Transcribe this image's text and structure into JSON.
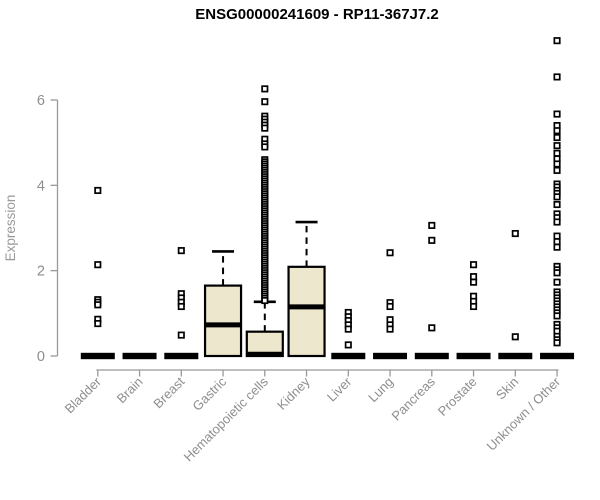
{
  "title": "ENSG00000241609 - RP11-367J7.2",
  "colors": {
    "title": "#000000",
    "axis_line": "#999999",
    "tick_label": "#8e8e8e",
    "axis_title": "#9a9a9a",
    "box_fill": "#ece7cd",
    "box_border": "#000000",
    "outlier_fill": "#ffffff",
    "outlier_border": "#000000"
  },
  "chart_data": {
    "type": "box",
    "title": "ENSG00000241609 - RP11-367J7.2",
    "xlabel": "",
    "ylabel": "Expression",
    "ylim": [
      0,
      7.5
    ],
    "yticks": [
      0,
      2,
      4,
      6
    ],
    "grid": false,
    "legend": false,
    "categories": [
      "Bladder",
      "Brain",
      "Breast",
      "Gastric",
      "Hematopoietic cells",
      "Kidney",
      "Liver",
      "Lung",
      "Pancreas",
      "Prostate",
      "Skin",
      "Unknown / Other"
    ],
    "series": [
      {
        "name": "Bladder",
        "whisker_low": 0,
        "q1": 0,
        "median": 0,
        "q3": 0,
        "whisker_high": 0,
        "outliers": [
          3.88,
          2.14,
          1.32,
          1.26,
          1.2,
          0.86,
          0.76
        ]
      },
      {
        "name": "Brain",
        "whisker_low": 0,
        "q1": 0,
        "median": 0,
        "q3": 0,
        "whisker_high": 0,
        "outliers": []
      },
      {
        "name": "Breast",
        "whisker_low": 0,
        "q1": 0,
        "median": 0,
        "q3": 0,
        "whisker_high": 0,
        "outliers": [
          2.47,
          1.46,
          1.36,
          1.26,
          1.16,
          0.49
        ]
      },
      {
        "name": "Gastric",
        "whisker_low": 0,
        "q1": 0,
        "median": 0.73,
        "q3": 1.65,
        "whisker_high": 2.45,
        "outliers": []
      },
      {
        "name": "Hematopoietic cells",
        "whisker_low": 0,
        "q1": 0,
        "median": 0.04,
        "q3": 0.57,
        "whisker_high": 1.27,
        "outliers": [
          6.26,
          5.96,
          5.62,
          5.55,
          5.48,
          5.41,
          5.34,
          5.08,
          4.97,
          4.9,
          4.6,
          4.55,
          4.5,
          4.45,
          4.4,
          4.35,
          4.3,
          4.25,
          4.2,
          4.15,
          4.1,
          4.05,
          4.0,
          3.95,
          3.9,
          3.85,
          3.8,
          3.75,
          3.7,
          3.65,
          3.6,
          3.55,
          3.5,
          3.45,
          3.4,
          3.35,
          3.3,
          3.25,
          3.2,
          3.15,
          3.1,
          3.05,
          3.0,
          2.95,
          2.9,
          2.85,
          2.8,
          2.75,
          2.7,
          2.65,
          2.6,
          2.55,
          2.5,
          2.45,
          2.4,
          2.35,
          2.3,
          2.25,
          2.2,
          2.15,
          2.1,
          2.05,
          2.0,
          1.95,
          1.9,
          1.85,
          1.8,
          1.75,
          1.7,
          1.65,
          1.6,
          1.55,
          1.5,
          1.45,
          1.4,
          1.35,
          1.3
        ]
      },
      {
        "name": "Kidney",
        "whisker_low": 0,
        "q1": 0,
        "median": 1.15,
        "q3": 2.09,
        "whisker_high": 3.14,
        "outliers": []
      },
      {
        "name": "Liver",
        "whisker_low": 0,
        "q1": 0,
        "median": 0,
        "q3": 0,
        "whisker_high": 0,
        "outliers": [
          1.02,
          0.92,
          0.83,
          0.73,
          0.63,
          0.26
        ]
      },
      {
        "name": "Lung",
        "whisker_low": 0,
        "q1": 0,
        "median": 0,
        "q3": 0,
        "whisker_high": 0,
        "outliers": [
          2.42,
          1.25,
          1.16,
          0.85,
          0.73,
          0.63
        ]
      },
      {
        "name": "Pancreas",
        "whisker_low": 0,
        "q1": 0,
        "median": 0,
        "q3": 0,
        "whisker_high": 0,
        "outliers": [
          3.06,
          2.71,
          0.66
        ]
      },
      {
        "name": "Prostate",
        "whisker_low": 0,
        "q1": 0,
        "median": 0,
        "q3": 0,
        "whisker_high": 0,
        "outliers": [
          2.14,
          1.86,
          1.73,
          1.4,
          1.28,
          1.16
        ]
      },
      {
        "name": "Skin",
        "whisker_low": 0,
        "q1": 0,
        "median": 0,
        "q3": 0,
        "whisker_high": 0,
        "outliers": [
          2.87,
          0.45
        ]
      },
      {
        "name": "Unknown / Other",
        "whisker_low": 0,
        "q1": 0,
        "median": 0,
        "q3": 0,
        "whisker_high": 0,
        "outliers": [
          7.39,
          6.54,
          5.67,
          5.4,
          5.28,
          5.12,
          4.93,
          4.75,
          4.62,
          4.5,
          4.35,
          4.03,
          3.96,
          3.88,
          3.81,
          3.73,
          3.55,
          3.33,
          3.24,
          3.14,
          2.81,
          2.68,
          2.55,
          2.1,
          2.02,
          1.95,
          1.73,
          1.5,
          1.43,
          1.36,
          1.29,
          1.22,
          1.15,
          1.08,
          1.01,
          0.94,
          0.74,
          0.66,
          0.58,
          0.46,
          0.38,
          0.31
        ]
      }
    ]
  }
}
